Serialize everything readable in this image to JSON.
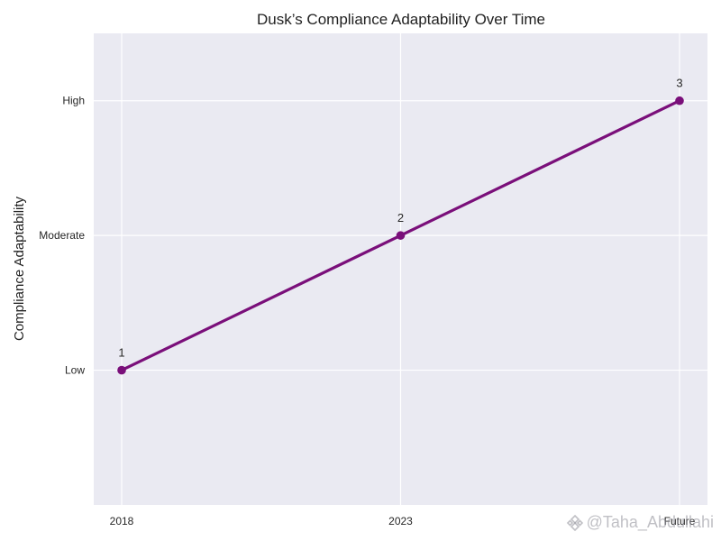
{
  "chart_data": {
    "type": "line",
    "title": "Dusk’s Compliance Adaptability Over Time",
    "xlabel": "",
    "ylabel": "Compliance Adaptability",
    "categories": [
      "2018",
      "2023",
      "Future"
    ],
    "values": [
      1,
      2,
      3
    ],
    "data_labels": [
      "1",
      "2",
      "3"
    ],
    "y_ticks": [
      {
        "value": 1,
        "label": "Low"
      },
      {
        "value": 2,
        "label": "Moderate"
      },
      {
        "value": 3,
        "label": "High"
      }
    ],
    "ylim": [
      0,
      3.5
    ],
    "grid": true,
    "line_color": "#7a0f7a",
    "background_color": "#eaeaf2",
    "grid_color": "#ffffff"
  },
  "watermark": {
    "text": "@Taha_Abdullahi"
  }
}
